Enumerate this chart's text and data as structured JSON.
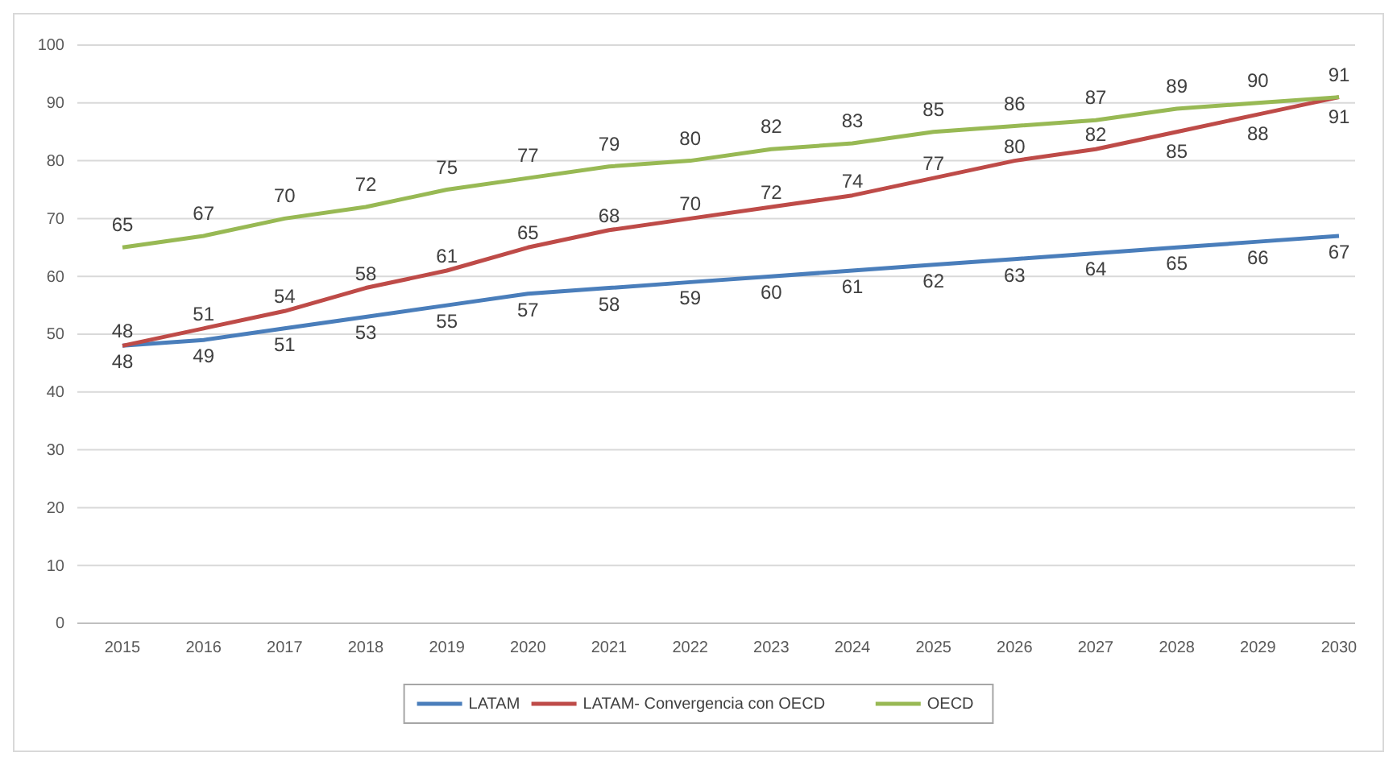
{
  "chart_data": {
    "type": "line",
    "categories": [
      "2015",
      "2016",
      "2017",
      "2018",
      "2019",
      "2020",
      "2021",
      "2022",
      "2023",
      "2024",
      "2025",
      "2026",
      "2027",
      "2028",
      "2029",
      "2030"
    ],
    "series": [
      {
        "name": "LATAM",
        "color": "#4a7ebb",
        "values": [
          48,
          49,
          51,
          53,
          55,
          57,
          58,
          59,
          60,
          61,
          62,
          63,
          64,
          65,
          66,
          67
        ]
      },
      {
        "name": "LATAM- Convergencia con OECD",
        "color": "#be4b48",
        "values": [
          48,
          51,
          54,
          58,
          61,
          65,
          68,
          70,
          72,
          74,
          77,
          80,
          82,
          85,
          88,
          91
        ]
      },
      {
        "name": "OECD",
        "color": "#98b954",
        "values": [
          65,
          67,
          70,
          72,
          75,
          77,
          79,
          80,
          82,
          83,
          85,
          86,
          87,
          89,
          90,
          91
        ]
      }
    ],
    "ylim": [
      0,
      100
    ],
    "yticks": [
      0,
      10,
      20,
      30,
      40,
      50,
      60,
      70,
      80,
      90,
      100
    ],
    "grid": "y",
    "legend": "bottom",
    "data_labels": true,
    "marker": "none",
    "line_style": "solid"
  }
}
